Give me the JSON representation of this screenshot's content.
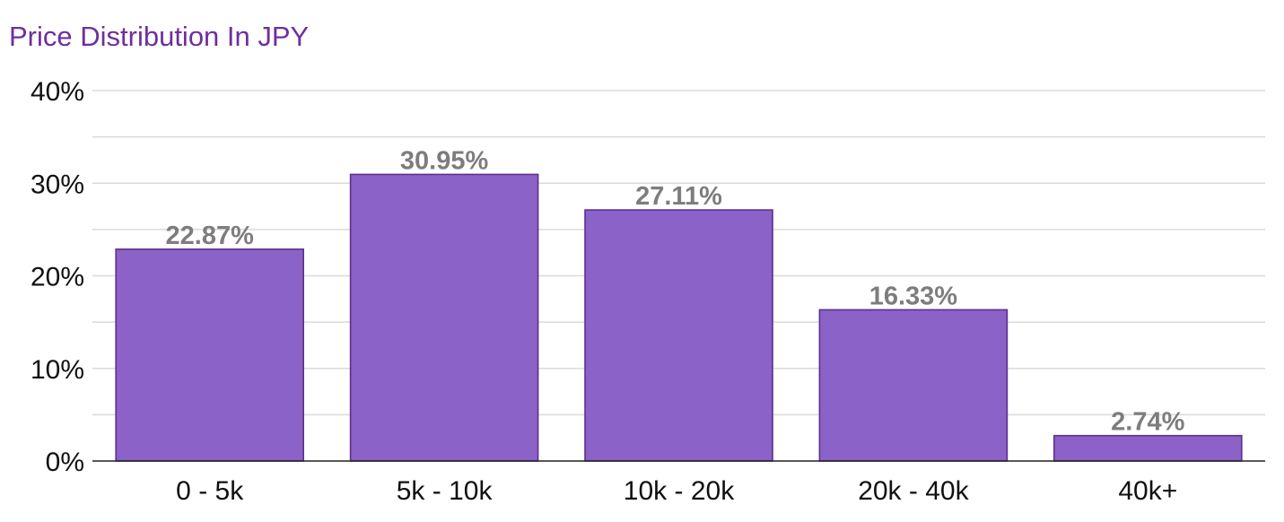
{
  "chart_data": {
    "type": "bar",
    "title": "Price Distribution In JPY",
    "xlabel": "",
    "ylabel": "",
    "categories": [
      "0 - 5k",
      "5k - 10k",
      "10k - 20k",
      "20k - 40k",
      "40k+"
    ],
    "values": [
      22.87,
      30.95,
      27.11,
      16.33,
      2.74
    ],
    "data_labels": [
      "22.87%",
      "30.95%",
      "27.11%",
      "16.33%",
      "2.74%"
    ],
    "ylim": [
      0,
      40
    ],
    "y_ticks": [
      0,
      10,
      20,
      30,
      40
    ],
    "y_tick_labels": [
      "0%",
      "10%",
      "20%",
      "30%",
      "40%"
    ],
    "grid": true,
    "legend": "none",
    "bar_color": "#8a62c8",
    "bar_edge_color": "#5f2f8c",
    "title_color": "#6f2f9e",
    "data_label_color": "#7d7d7d"
  }
}
